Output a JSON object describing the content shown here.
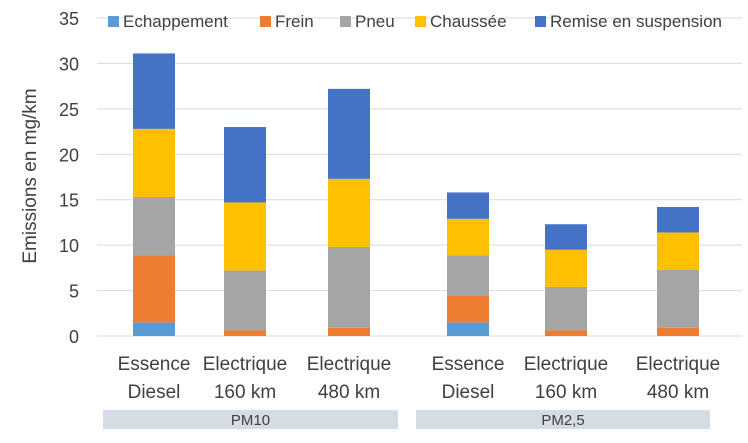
{
  "chart_data": {
    "type": "bar",
    "stacked": true,
    "ylabel": "Emissions en mg/km",
    "xlabel": "",
    "title": "",
    "ylim": [
      0,
      35
    ],
    "yticks": [
      0,
      5,
      10,
      15,
      20,
      25,
      30,
      35
    ],
    "grid": true,
    "legend_position": "top",
    "categories": [
      [
        "Essence",
        "Diesel"
      ],
      [
        "Electrique",
        "160 km"
      ],
      [
        "Electrique",
        "480 km"
      ],
      [
        "Essence",
        "Diesel"
      ],
      [
        "Electrique",
        "160 km"
      ],
      [
        "Electrique",
        "480 km"
      ]
    ],
    "groups": [
      {
        "label": "PM10",
        "span": [
          0,
          2
        ]
      },
      {
        "label": "PM2,5",
        "span": [
          3,
          5
        ]
      }
    ],
    "series": [
      {
        "name": "Echappement",
        "color": "#5B9BD5",
        "values": [
          1.5,
          0,
          0,
          1.5,
          0,
          0
        ]
      },
      {
        "name": "Frein",
        "color": "#ED7D31",
        "values": [
          7.4,
          0.6,
          0.9,
          2.9,
          0.6,
          0.9
        ]
      },
      {
        "name": "Pneu",
        "color": "#A5A5A5",
        "values": [
          6.4,
          6.6,
          8.9,
          4.5,
          4.8,
          6.4
        ]
      },
      {
        "name": "Chaussée",
        "color": "#FFC000",
        "values": [
          7.5,
          7.5,
          7.5,
          4.0,
          4.1,
          4.1
        ]
      },
      {
        "name": "Remise en suspension",
        "color": "#4472C4",
        "values": [
          8.3,
          8.3,
          9.9,
          2.9,
          2.8,
          2.8
        ]
      }
    ]
  }
}
